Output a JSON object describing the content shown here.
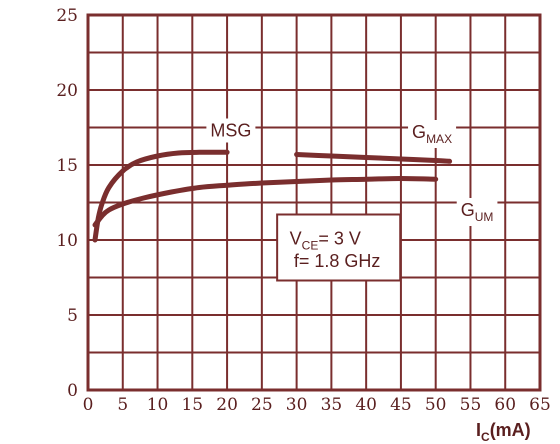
{
  "chart_data": {
    "type": "line",
    "title": "",
    "xlabel": "I",
    "xlabel_sub": "C",
    "xlabel_unit": "(mA)",
    "ylabel": "",
    "xlim": [
      0,
      65
    ],
    "ylim": [
      0,
      25
    ],
    "x_ticks": [
      "0",
      "5",
      "10",
      "15",
      "20",
      "25",
      "30",
      "35",
      "40",
      "45",
      "50",
      "55",
      "60",
      "65"
    ],
    "y_ticks": [
      "0",
      "5",
      "10",
      "15",
      "20",
      "25"
    ],
    "grid": true,
    "colors": {
      "line": "#7a2e2e",
      "grid": "#7a2e2e",
      "text": "#5a1f1f"
    },
    "series": [
      {
        "name": "MSG",
        "x": [
          1,
          1.5,
          2,
          3,
          5,
          7,
          10,
          13,
          16,
          20
        ],
        "y": [
          10,
          11.5,
          12.4,
          13.5,
          14.6,
          15.2,
          15.6,
          15.8,
          15.85,
          15.85
        ]
      },
      {
        "name": "GMAX",
        "x": [
          30,
          35,
          40,
          45,
          50,
          52
        ],
        "y": [
          15.7,
          15.6,
          15.5,
          15.4,
          15.3,
          15.25
        ]
      },
      {
        "name": "GUM",
        "x": [
          1,
          2,
          3,
          5,
          8,
          12,
          16,
          20,
          25,
          30,
          35,
          40,
          45,
          50
        ],
        "y": [
          11.0,
          11.6,
          12.0,
          12.4,
          12.8,
          13.2,
          13.5,
          13.65,
          13.8,
          13.9,
          14.0,
          14.05,
          14.1,
          14.05
        ]
      }
    ],
    "labels": {
      "msg": {
        "text": "MSG"
      },
      "gmax": {
        "main": "G",
        "sub": "MAX"
      },
      "gum": {
        "main": "G",
        "sub": "UM"
      }
    },
    "conditions": {
      "vce_main": "V",
      "vce_sub": "CE",
      "vce_value": "= 3 V",
      "freq": "f= 1.8 GHz"
    }
  }
}
